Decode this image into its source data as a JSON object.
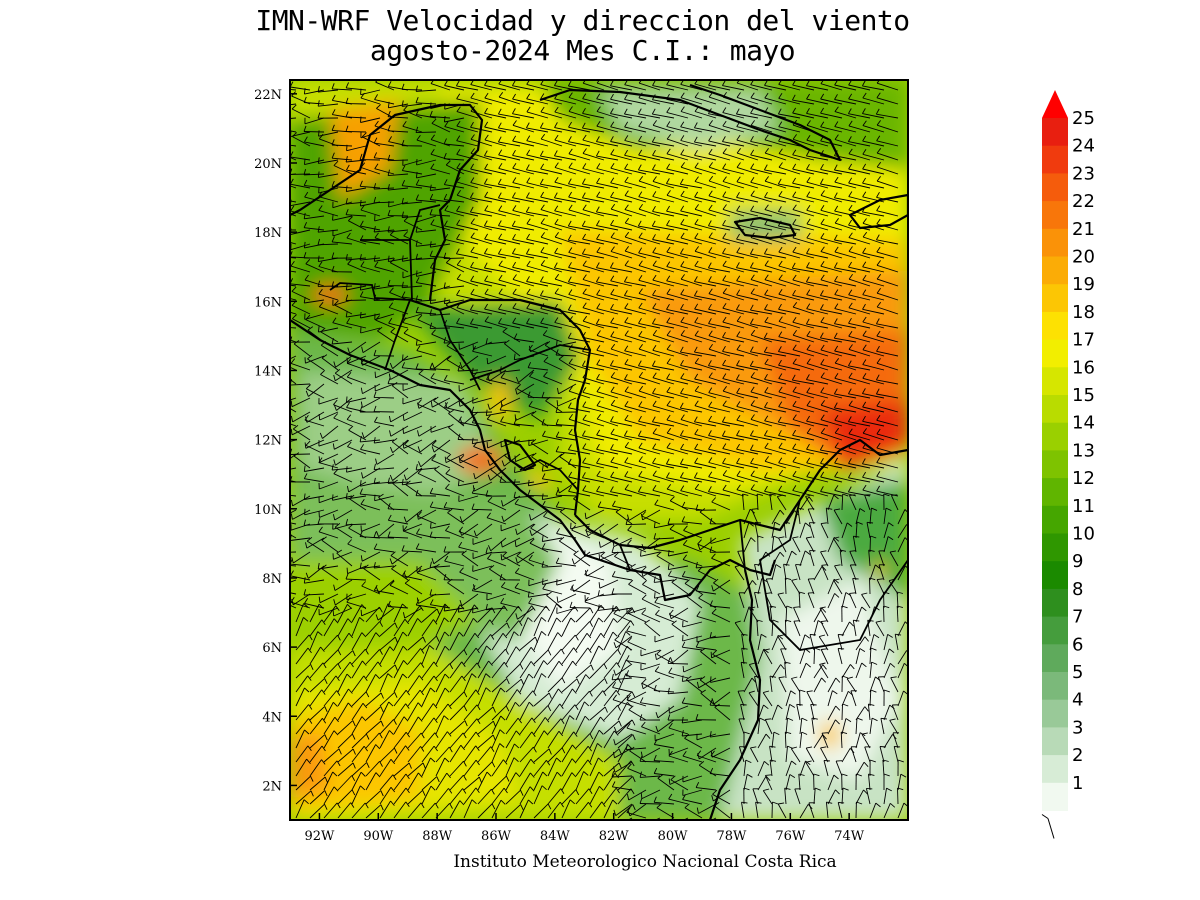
{
  "title": {
    "line1": "IMN-WRF Velocidad y direccion del viento",
    "line2": "agosto-2024 Mes C.I.: mayo"
  },
  "credit": "Instituto Meteorologico Nacional Costa Rica",
  "map": {
    "lat_ticks": [
      "22N",
      "20N",
      "18N",
      "16N",
      "14N",
      "12N",
      "10N",
      "8N",
      "6N",
      "4N",
      "2N"
    ],
    "lon_ticks": [
      "92W",
      "90W",
      "88W",
      "86W",
      "84W",
      "82W",
      "80W",
      "78W",
      "76W",
      "74W"
    ],
    "lat_values": [
      22,
      20,
      18,
      16,
      14,
      12,
      10,
      8,
      6,
      4,
      2
    ],
    "lon_values": [
      -92,
      -90,
      -88,
      -86,
      -84,
      -82,
      -80,
      -78,
      -76,
      -74
    ],
    "extent": {
      "lon_min": -93.0,
      "lon_max": -72.0,
      "lat_min": 1.0,
      "lat_max": 22.4
    }
  },
  "colorbar": {
    "labels": [
      "25",
      "24",
      "23",
      "22",
      "21",
      "20",
      "19",
      "18",
      "17",
      "16",
      "15",
      "14",
      "13",
      "12",
      "11",
      "10",
      "9",
      "8",
      "7",
      "6",
      "5",
      "4",
      "3",
      "2",
      "1"
    ],
    "colors": [
      "#e81f10",
      "#f03b0e",
      "#f55c0c",
      "#f8760a",
      "#fa9208",
      "#fbac06",
      "#fcc604",
      "#fde102",
      "#f2ee00",
      "#d6e600",
      "#b9dc00",
      "#9ad000",
      "#7ec300",
      "#60b500",
      "#45a600",
      "#2f9700",
      "#1b8a00",
      "#2e8f1e",
      "#459d3d",
      "#5faa5c",
      "#7bb97a",
      "#99c998",
      "#b8dab7",
      "#d7ecd6",
      "#f1f9f0"
    ],
    "top_arrow_color": "#ff0000"
  }
}
